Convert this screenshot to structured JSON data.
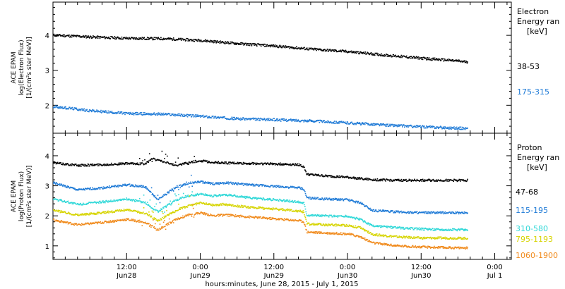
{
  "chart_data": [
    {
      "type": "scatter",
      "ylabel_lines": [
        "ACE EPAM",
        "log(Electron Flux)",
        "[1/(cm²s ster MeV)]"
      ],
      "legend_title": [
        "Electron",
        "Energy ran",
        "[keV]"
      ],
      "ylim": [
        1.2,
        4.95
      ],
      "yticks": [
        2,
        3,
        4
      ],
      "series": [
        {
          "name": "38-53",
          "color": "#000000",
          "x": [
            0,
            6,
            12,
            18,
            24,
            30,
            36,
            42,
            48,
            54,
            60,
            66,
            67.5
          ],
          "y": [
            4.02,
            3.97,
            3.93,
            3.92,
            3.87,
            3.78,
            3.71,
            3.62,
            3.55,
            3.45,
            3.36,
            3.28,
            3.25
          ]
        },
        {
          "name": "175-315",
          "color": "#1e7ad6",
          "x": [
            0,
            6,
            12,
            18,
            24,
            30,
            36,
            42,
            48,
            54,
            60,
            66,
            67.5
          ],
          "y": [
            1.98,
            1.86,
            1.78,
            1.76,
            1.7,
            1.63,
            1.6,
            1.57,
            1.51,
            1.45,
            1.4,
            1.36,
            1.35
          ]
        }
      ]
    },
    {
      "type": "scatter",
      "ylabel_lines": [
        "ACE EPAM",
        "log(Proton Flux)",
        "[1/(cm²s ster MeV)]"
      ],
      "legend_title": [
        "Proton",
        "Energy ran",
        "[keV]"
      ],
      "ylim": [
        0.55,
        4.75
      ],
      "yticks": [
        1,
        2,
        3,
        4
      ],
      "xlabel": "hours:minutes, June 28, 2015 - July  1, 2015",
      "xticks": [
        {
          "x": 12,
          "label": "12:00",
          "sub": "Jun28"
        },
        {
          "x": 24,
          "label": "0:00",
          "sub": "Jun29"
        },
        {
          "x": 36,
          "label": "12:00",
          "sub": "Jun29"
        },
        {
          "x": 48,
          "label": "0:00",
          "sub": "Jun30"
        },
        {
          "x": 60,
          "label": "12:00",
          "sub": "Jun30"
        },
        {
          "x": 72,
          "label": "0:00",
          "sub": "Jul 1"
        }
      ],
      "xlim": [
        0,
        74.7
      ],
      "series": [
        {
          "name": "47-68",
          "color": "#000000",
          "x": [
            0,
            4,
            8,
            12,
            15,
            16,
            20,
            22,
            24,
            26,
            28,
            32,
            36,
            40,
            40.8,
            41.3,
            44,
            48,
            52,
            56,
            60,
            64,
            67.5
          ],
          "y": [
            3.78,
            3.7,
            3.72,
            3.76,
            3.75,
            3.92,
            3.7,
            3.8,
            3.85,
            3.8,
            3.78,
            3.76,
            3.75,
            3.72,
            3.65,
            3.4,
            3.35,
            3.3,
            3.22,
            3.2,
            3.2,
            3.2,
            3.2
          ]
        },
        {
          "name": "115-195",
          "color": "#1e7ad6",
          "x": [
            0,
            4,
            8,
            12,
            15,
            17,
            20,
            22,
            24,
            26,
            28,
            32,
            36,
            40,
            40.8,
            41.3,
            44,
            48,
            50,
            52,
            56,
            60,
            64,
            67.5
          ],
          "y": [
            3.12,
            2.88,
            2.95,
            3.05,
            2.98,
            2.55,
            2.98,
            3.1,
            3.15,
            3.08,
            3.12,
            3.05,
            3.0,
            2.95,
            2.9,
            2.62,
            2.58,
            2.55,
            2.45,
            2.2,
            2.15,
            2.12,
            2.12,
            2.12
          ]
        },
        {
          "name": "310-580",
          "color": "#30d8d8",
          "x": [
            0,
            4,
            8,
            12,
            15,
            17,
            20,
            22,
            24,
            26,
            28,
            32,
            36,
            40,
            40.8,
            41.3,
            44,
            48,
            50,
            52,
            56,
            60,
            64,
            67.5
          ],
          "y": [
            2.58,
            2.4,
            2.48,
            2.58,
            2.45,
            2.15,
            2.55,
            2.68,
            2.75,
            2.68,
            2.72,
            2.62,
            2.55,
            2.48,
            2.45,
            2.05,
            2.02,
            2.0,
            1.9,
            1.68,
            1.62,
            1.58,
            1.56,
            1.55
          ]
        },
        {
          "name": "795-1193",
          "color": "#d6d400",
          "x": [
            0,
            4,
            8,
            12,
            15,
            17,
            20,
            22,
            24,
            26,
            28,
            32,
            36,
            40,
            40.8,
            41.3,
            44,
            48,
            50,
            52,
            56,
            60,
            64,
            67.5
          ],
          "y": [
            2.2,
            2.05,
            2.12,
            2.22,
            2.1,
            1.85,
            2.2,
            2.35,
            2.45,
            2.38,
            2.4,
            2.3,
            2.25,
            2.18,
            2.15,
            1.75,
            1.72,
            1.7,
            1.62,
            1.4,
            1.32,
            1.28,
            1.28,
            1.27
          ]
        },
        {
          "name": "1060-1900",
          "color": "#f08a1c",
          "x": [
            0,
            4,
            8,
            12,
            15,
            17,
            20,
            22,
            24,
            26,
            28,
            32,
            36,
            40,
            40.8,
            41.3,
            44,
            48,
            50,
            52,
            56,
            60,
            64,
            67.5
          ],
          "y": [
            1.88,
            1.72,
            1.8,
            1.9,
            1.8,
            1.55,
            1.9,
            2.05,
            2.12,
            2.02,
            2.05,
            1.98,
            1.92,
            1.86,
            1.82,
            1.48,
            1.45,
            1.42,
            1.32,
            1.12,
            1.02,
            0.98,
            0.96,
            0.95
          ]
        }
      ]
    }
  ]
}
